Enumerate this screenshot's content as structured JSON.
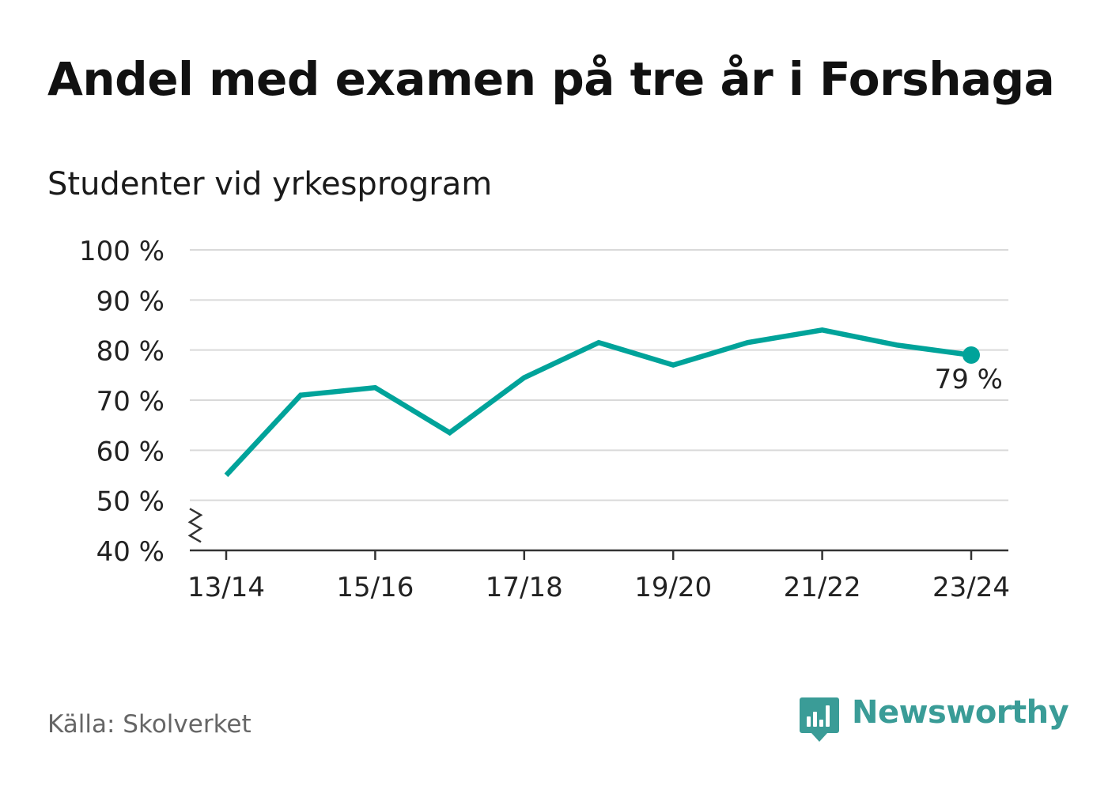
{
  "title": "Andel med examen på tre år i Forshaga",
  "subtitle": "Studenter vid yrkesprogram",
  "source": "Källa: Skolverket",
  "brand": {
    "name": "Newsworthy",
    "icon": "newsworthy-logo-icon",
    "color": "#3a9c97"
  },
  "colors": {
    "line": "#00a39a",
    "grid": "#d9d9d9",
    "axis": "#333333",
    "text": "#222222"
  },
  "chart_data": {
    "type": "line",
    "x": [
      "13/14",
      "14/15",
      "15/16",
      "16/17",
      "17/18",
      "18/19",
      "19/20",
      "20/21",
      "21/22",
      "22/23",
      "23/24"
    ],
    "xticks": [
      "13/14",
      "15/16",
      "17/18",
      "19/20",
      "21/22",
      "23/24"
    ],
    "series": [
      {
        "values": [
          55,
          71,
          72.5,
          63.5,
          74.5,
          81.5,
          77,
          81.5,
          84,
          81,
          79
        ]
      }
    ],
    "ylim": [
      40,
      100
    ],
    "yticks": [
      40,
      50,
      60,
      70,
      80,
      90,
      100
    ],
    "ytick_suffix": " %",
    "y_axis_break": true,
    "grid": true,
    "end_label": "79 %"
  }
}
